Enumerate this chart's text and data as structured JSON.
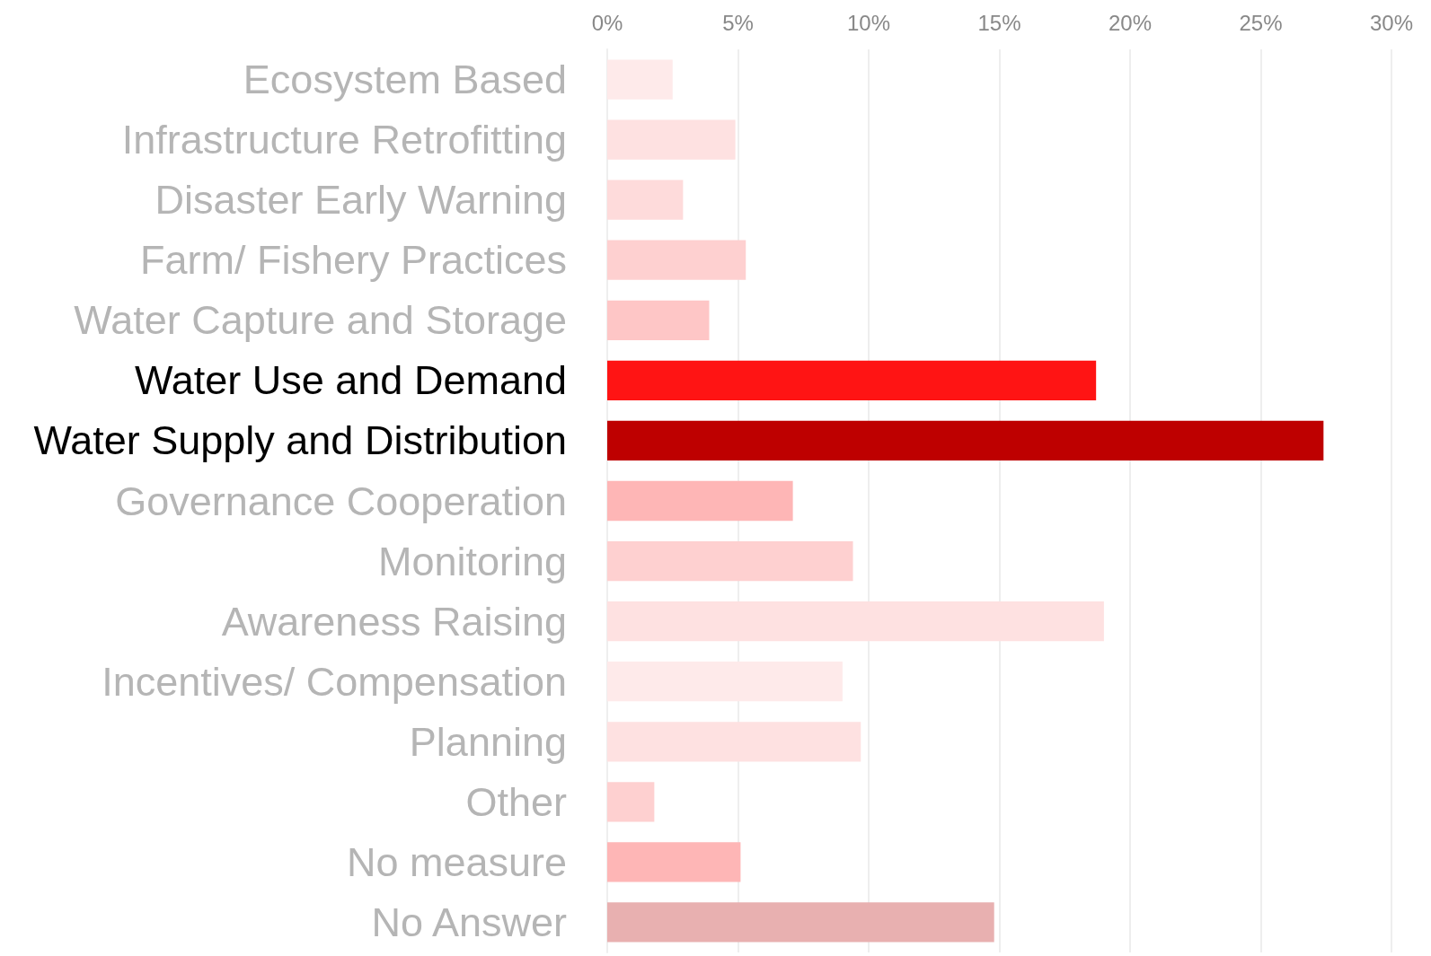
{
  "chart_data": {
    "type": "bar",
    "orientation": "horizontal",
    "categories": [
      "Ecosystem Based",
      "Infrastructure Retrofitting",
      "Disaster Early Warning",
      "Farm/ Fishery Practices",
      "Water Capture and Storage",
      "Water Use and Demand",
      "Water Supply and Distribution",
      "Governance Cooperation",
      "Monitoring",
      "Awareness Raising",
      "Incentives/ Compensation",
      "Planning",
      "Other",
      "No measure",
      "No Answer"
    ],
    "values": [
      2.5,
      4.9,
      2.9,
      5.3,
      3.9,
      18.7,
      27.4,
      7.1,
      9.4,
      19.0,
      9.0,
      9.7,
      1.8,
      5.1,
      14.8
    ],
    "colors": [
      "#feeaea",
      "#fee1e1",
      "#fedbdb",
      "#fed0d0",
      "#fec6c6",
      "#ff1414",
      "#be0000",
      "#feb6b6",
      "#fed0d0",
      "#fee1e1",
      "#feeaea",
      "#fee1e1",
      "#fed0d0",
      "#feb6b6",
      "#e8b0b0"
    ],
    "xlim": [
      0,
      30
    ],
    "xticks": [
      {
        "value": 0,
        "label": "0%"
      },
      {
        "value": 5,
        "label": "5%"
      },
      {
        "value": 10,
        "label": "10%"
      },
      {
        "value": 15,
        "label": "15%"
      },
      {
        "value": 20,
        "label": "20%"
      },
      {
        "value": 25,
        "label": "25%"
      },
      {
        "value": 30,
        "label": "30%"
      }
    ],
    "grid": "x"
  }
}
